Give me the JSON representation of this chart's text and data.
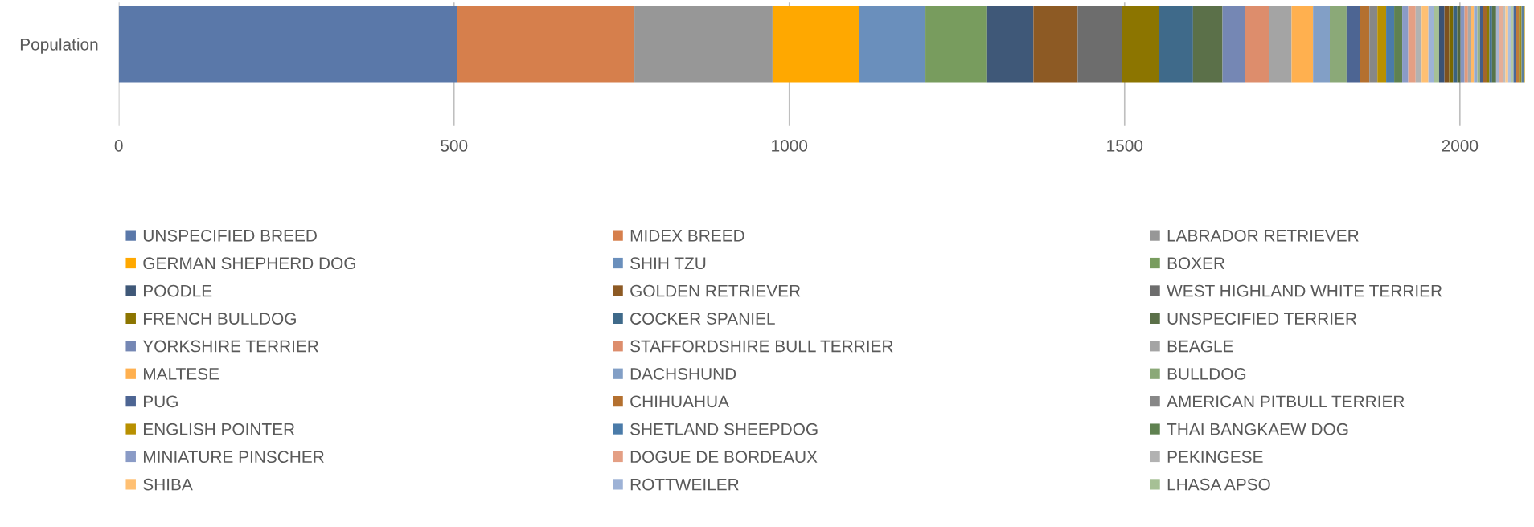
{
  "chart_data": {
    "type": "bar",
    "orientation": "horizontal",
    "stacked": true,
    "categories": [
      "Population"
    ],
    "xlim": [
      0,
      2100
    ],
    "xticks": [
      0,
      500,
      1000,
      1500,
      2000
    ],
    "grid": "x",
    "legend": "bottom",
    "series": [
      {
        "name": "UNSPECIFIED BREED",
        "color": "#5a78a9",
        "values": [
          504
        ]
      },
      {
        "name": "MIDEX BREED",
        "color": "#d67f4c",
        "values": [
          265
        ]
      },
      {
        "name": "LABRADOR RETRIEVER",
        "color": "#979797",
        "values": [
          206
        ]
      },
      {
        "name": "GERMAN SHEPHERD DOG",
        "color": "#ffa800",
        "values": [
          129
        ]
      },
      {
        "name": "SHIH TZU",
        "color": "#6a8fbc",
        "values": [
          99
        ]
      },
      {
        "name": "BOXER",
        "color": "#789c5e",
        "values": [
          92
        ]
      },
      {
        "name": "POODLE",
        "color": "#3f5878",
        "values": [
          69
        ]
      },
      {
        "name": "GOLDEN RETRIEVER",
        "color": "#8d5a24",
        "values": [
          66
        ]
      },
      {
        "name": "WEST HIGHLAND WHITE TERRIER",
        "color": "#6d6d6d",
        "values": [
          66
        ]
      },
      {
        "name": "FRENCH BULLDOG",
        "color": "#8c7500",
        "values": [
          55
        ]
      },
      {
        "name": "COCKER SPANIEL",
        "color": "#3f6a8a",
        "values": [
          51
        ]
      },
      {
        "name": "UNSPECIFIED TERRIER",
        "color": "#5b7049",
        "values": [
          44
        ]
      },
      {
        "name": "YORKSHIRE TERRIER",
        "color": "#7587b4",
        "values": [
          34
        ]
      },
      {
        "name": "STAFFORDSHIRE BULL TERRIER",
        "color": "#dd8d6c",
        "values": [
          35
        ]
      },
      {
        "name": "BEAGLE",
        "color": "#a4a4a4",
        "values": [
          34
        ]
      },
      {
        "name": "MALTESE",
        "color": "#ffb04f",
        "values": [
          32
        ]
      },
      {
        "name": "DACHSHUND",
        "color": "#829fc6",
        "values": [
          25
        ]
      },
      {
        "name": "BULLDOG",
        "color": "#8ba978",
        "values": [
          25
        ]
      },
      {
        "name": "PUG",
        "color": "#4d6593",
        "values": [
          20
        ]
      },
      {
        "name": "CHIHUAHUA",
        "color": "#b4702f",
        "values": [
          14
        ]
      },
      {
        "name": "AMERICAN PITBULL TERRIER",
        "color": "#878787",
        "values": [
          12
        ]
      },
      {
        "name": "ENGLISH POINTER",
        "color": "#b89000",
        "values": [
          13
        ]
      },
      {
        "name": "SHETLAND SHEEPDOG",
        "color": "#4a7ba9",
        "values": [
          12
        ]
      },
      {
        "name": "THAI BANGKAEW DOG",
        "color": "#5f8150",
        "values": [
          12
        ]
      },
      {
        "name": "MINIATURE PINSCHER",
        "color": "#8a9bc6",
        "values": [
          9
        ]
      },
      {
        "name": "DOGUE DE BORDEAUX",
        "color": "#e49f84",
        "values": [
          11
        ]
      },
      {
        "name": "PEKINGESE",
        "color": "#b2b2b2",
        "values": [
          9
        ]
      },
      {
        "name": "SHIBA",
        "color": "#ffc073",
        "values": [
          10
        ]
      },
      {
        "name": "ROTTWEILER",
        "color": "#9db2d6",
        "values": [
          8
        ]
      },
      {
        "name": "LHASA APSO",
        "color": "#a6c095",
        "values": [
          8
        ]
      },
      {
        "color": "#3a5275",
        "values": [
          8
        ]
      },
      {
        "color": "#7d5220",
        "values": [
          7
        ]
      },
      {
        "color": "#7a6800",
        "values": [
          6
        ]
      },
      {
        "color": "#3a6280",
        "values": [
          6
        ]
      },
      {
        "color": "#52663f",
        "values": [
          5
        ]
      },
      {
        "color": "#8496c0",
        "values": [
          6
        ]
      },
      {
        "color": "#e09a7c",
        "values": [
          5
        ]
      },
      {
        "color": "#a9a9a9",
        "values": [
          5
        ]
      },
      {
        "color": "#ffb864",
        "values": [
          4
        ]
      },
      {
        "color": "#8fa8cf",
        "values": [
          5
        ]
      },
      {
        "color": "#97b283",
        "values": [
          4
        ]
      },
      {
        "color": "#445d88",
        "values": [
          5
        ]
      },
      {
        "color": "#a3662b",
        "values": [
          5
        ]
      },
      {
        "color": "#8a7a00",
        "values": [
          4
        ]
      },
      {
        "color": "#44708f",
        "values": [
          4
        ]
      },
      {
        "color": "#56734a",
        "values": [
          6
        ]
      },
      {
        "color": "#a7b3cf",
        "values": [
          5
        ]
      },
      {
        "color": "#e5ad96",
        "values": [
          5
        ]
      },
      {
        "color": "#bdbdbd",
        "values": [
          4
        ]
      },
      {
        "color": "#ffc98a",
        "values": [
          4
        ]
      },
      {
        "color": "#adc0de",
        "values": [
          4
        ]
      },
      {
        "color": "#b3c8a5",
        "values": [
          4
        ]
      },
      {
        "color": "#4a6798",
        "values": [
          4
        ]
      },
      {
        "color": "#c07a3a",
        "values": [
          4
        ]
      },
      {
        "color": "#9b8b1c",
        "values": [
          4
        ]
      },
      {
        "color": "#5a7e9a",
        "values": [
          3
        ]
      },
      {
        "color": "#c5a63a",
        "values": [
          2
        ]
      }
    ]
  }
}
